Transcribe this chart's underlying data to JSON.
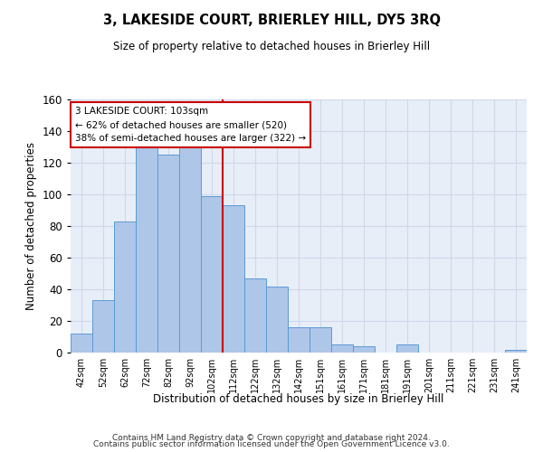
{
  "title": "3, LAKESIDE COURT, BRIERLEY HILL, DY5 3RQ",
  "subtitle": "Size of property relative to detached houses in Brierley Hill",
  "xlabel": "Distribution of detached houses by size in Brierley Hill",
  "ylabel": "Number of detached properties",
  "footer_line1": "Contains HM Land Registry data © Crown copyright and database right 2024.",
  "footer_line2": "Contains public sector information licensed under the Open Government Licence v3.0.",
  "bar_labels": [
    "42sqm",
    "52sqm",
    "62sqm",
    "72sqm",
    "82sqm",
    "92sqm",
    "102sqm",
    "112sqm",
    "122sqm",
    "132sqm",
    "142sqm",
    "151sqm",
    "161sqm",
    "171sqm",
    "181sqm",
    "191sqm",
    "201sqm",
    "211sqm",
    "221sqm",
    "231sqm",
    "241sqm"
  ],
  "bar_values": [
    12,
    33,
    83,
    132,
    125,
    130,
    99,
    93,
    47,
    42,
    16,
    16,
    5,
    4,
    0,
    5,
    0,
    0,
    0,
    0,
    2
  ],
  "bar_color": "#aec6e8",
  "bar_edge_color": "#5b9bd5",
  "grid_color": "#d0d8e8",
  "bg_color": "#e8eef8",
  "annotation_text": "3 LAKESIDE COURT: 103sqm\n← 62% of detached houses are smaller (520)\n38% of semi-detached houses are larger (322) →",
  "annotation_box_edge_color": "#cc0000",
  "vline_x": 6.5,
  "vline_color": "#cc0000",
  "ylim": [
    0,
    160
  ],
  "yticks": [
    0,
    20,
    40,
    60,
    80,
    100,
    120,
    140,
    160
  ]
}
